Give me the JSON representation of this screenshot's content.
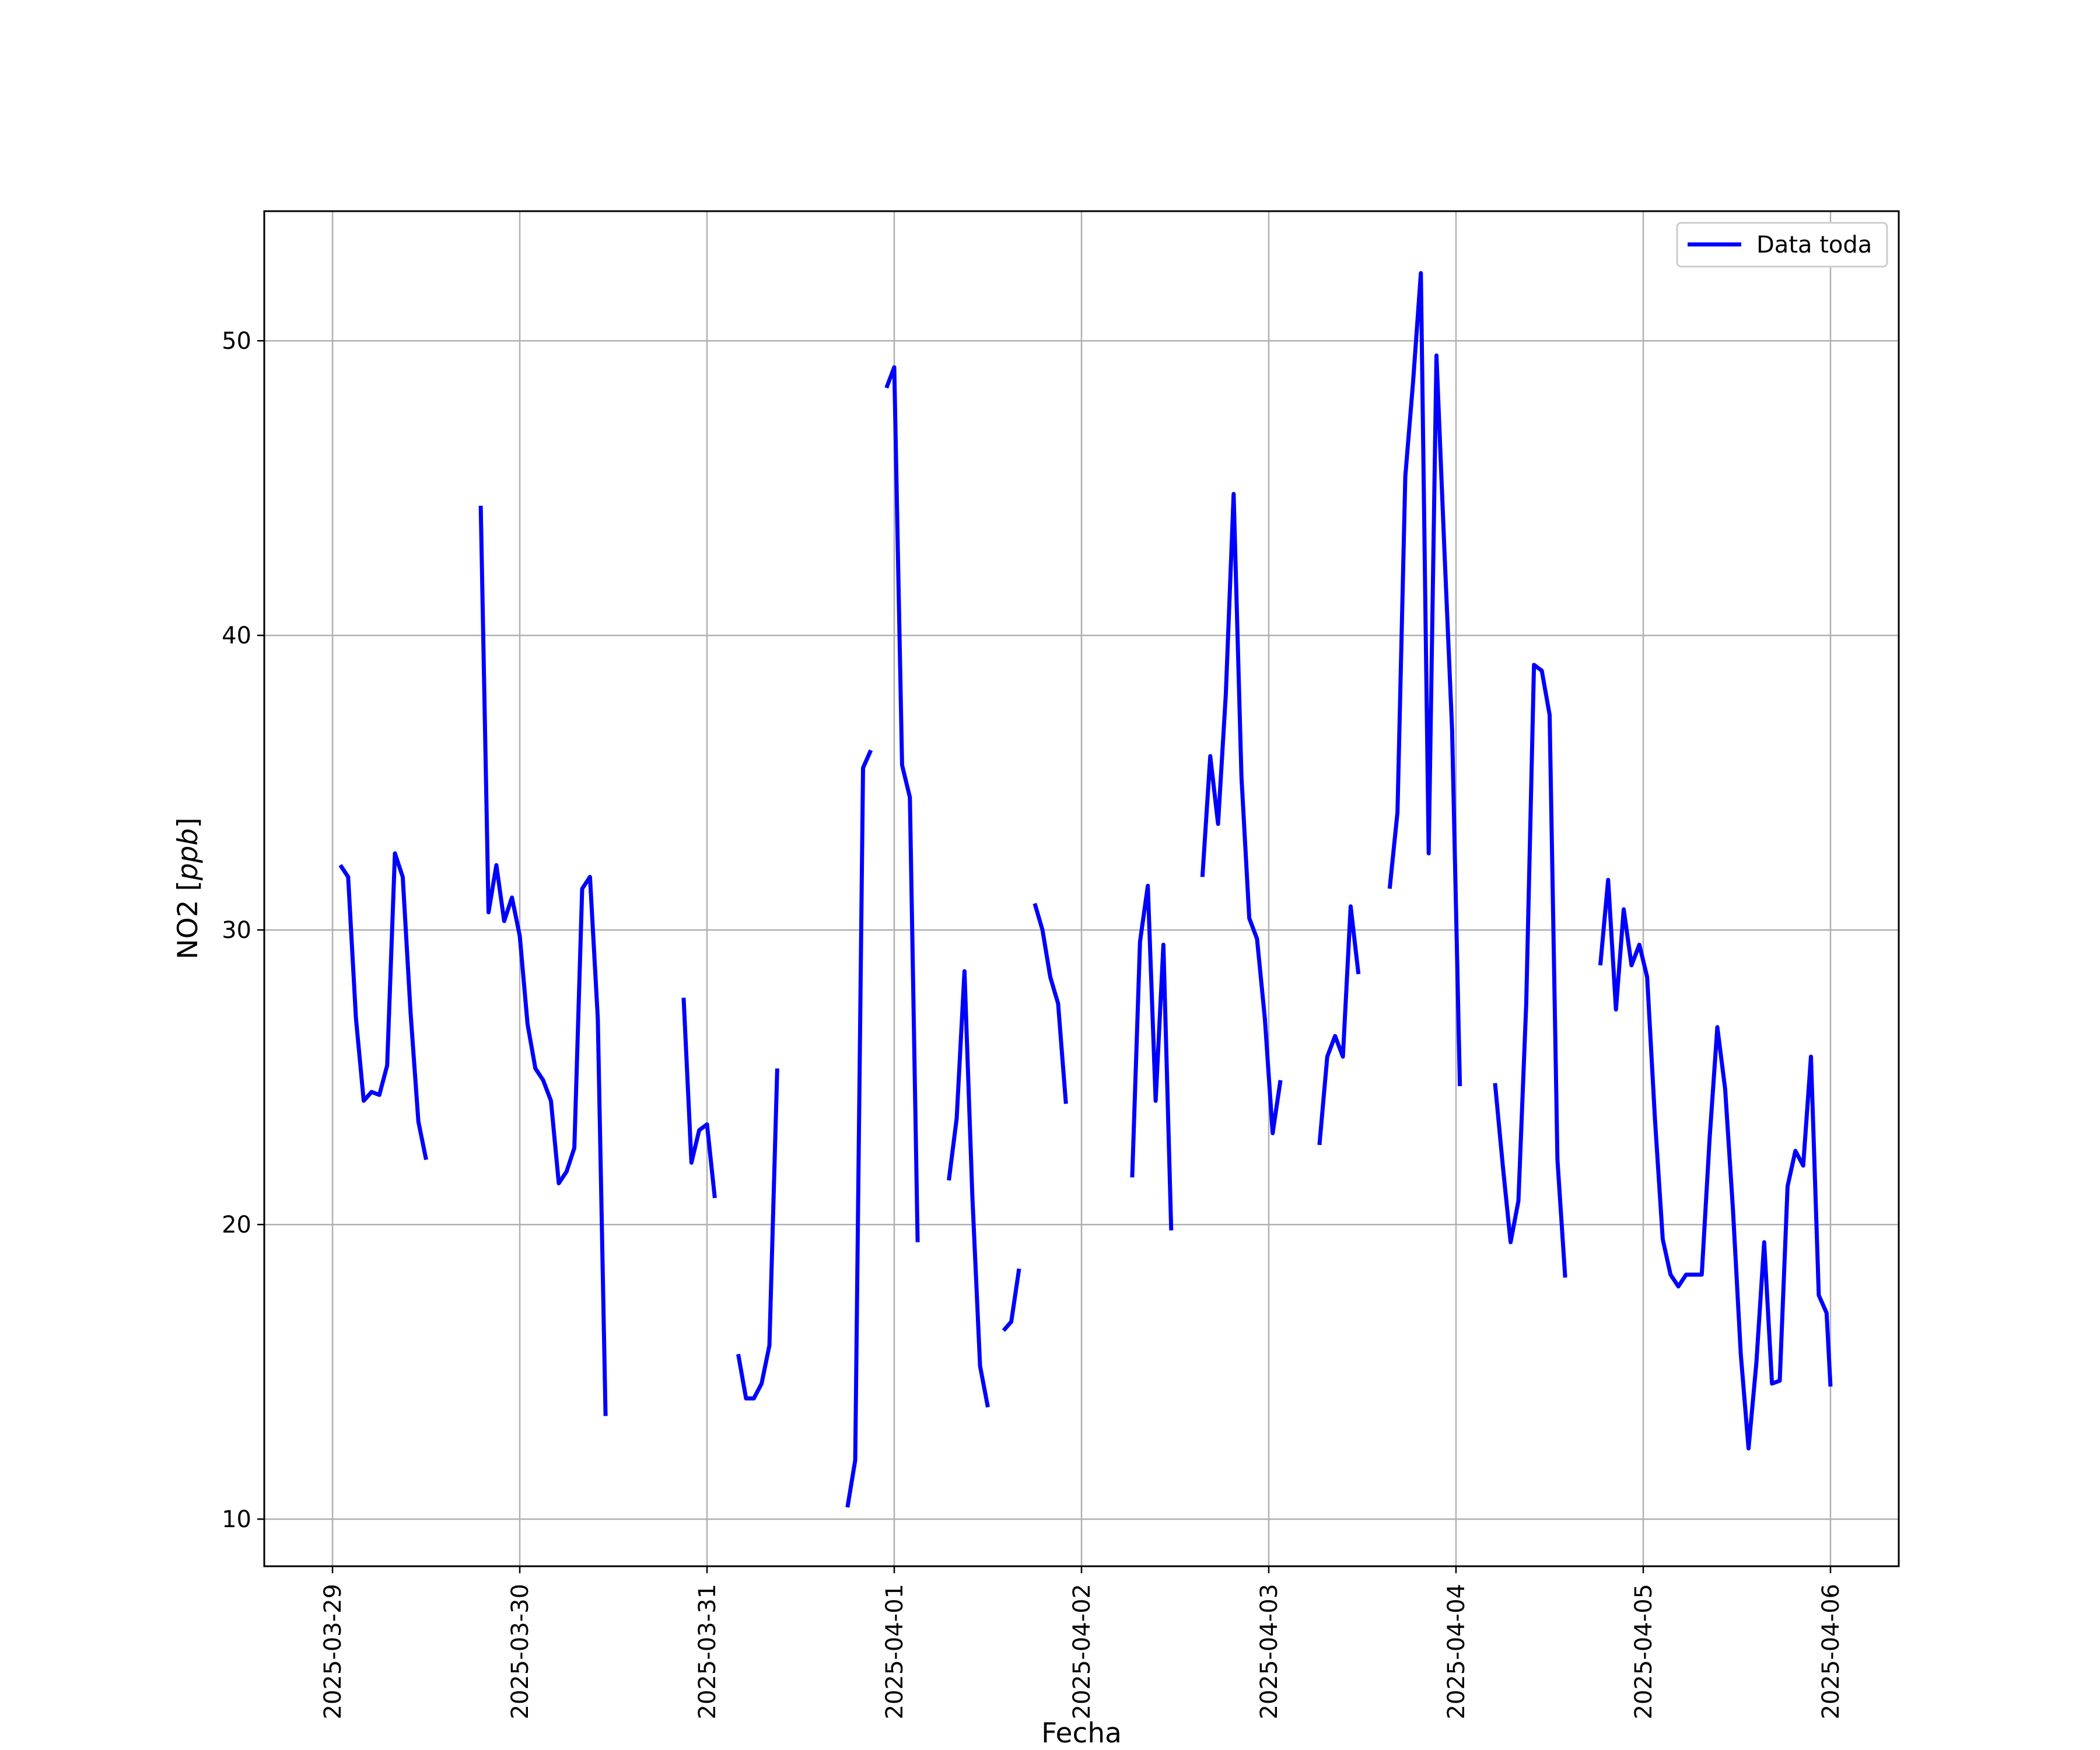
{
  "chart_data": {
    "type": "line",
    "title": "",
    "xlabel": "Fecha",
    "ylabel_main": "NO2",
    "ylabel_unit": "ppb",
    "xlim": [
      "2025-03-28T15:15",
      "2025-04-06T08:45"
    ],
    "ylim": [
      8.4,
      54.4
    ],
    "grid": true,
    "legend": {
      "position": "top-right",
      "entries": [
        "Data toda"
      ]
    },
    "x_ticks": [
      "2025-03-29",
      "2025-03-30",
      "2025-03-31",
      "2025-04-01",
      "2025-04-02",
      "2025-04-03",
      "2025-04-04",
      "2025-04-05",
      "2025-04-06"
    ],
    "y_ticks": [
      10,
      20,
      30,
      40,
      50
    ],
    "series": [
      {
        "name": "Data toda",
        "color": "#0000ff",
        "segments": [
          [
            [
              "2025-03-29T01:00",
              32.2
            ],
            [
              "2025-03-29T02:00",
              31.8
            ],
            [
              "2025-03-29T03:00",
              27.0
            ],
            [
              "2025-03-29T04:00",
              24.2
            ],
            [
              "2025-03-29T05:00",
              24.5
            ],
            [
              "2025-03-29T06:00",
              24.4
            ],
            [
              "2025-03-29T07:00",
              25.4
            ],
            [
              "2025-03-29T08:00",
              32.6
            ],
            [
              "2025-03-29T09:00",
              31.8
            ],
            [
              "2025-03-29T10:00",
              27.2
            ],
            [
              "2025-03-29T11:00",
              23.5
            ],
            [
              "2025-03-29T12:00",
              22.2
            ]
          ],
          [
            [
              "2025-03-29T19:00",
              44.4
            ],
            [
              "2025-03-29T20:00",
              30.6
            ],
            [
              "2025-03-29T21:00",
              32.2
            ],
            [
              "2025-03-29T22:00",
              30.3
            ],
            [
              "2025-03-29T23:00",
              31.1
            ],
            [
              "2025-03-30T00:00",
              29.8
            ],
            [
              "2025-03-30T01:00",
              26.8
            ],
            [
              "2025-03-30T02:00",
              25.3
            ],
            [
              "2025-03-30T03:00",
              24.9
            ],
            [
              "2025-03-30T04:00",
              24.2
            ],
            [
              "2025-03-30T05:00",
              21.4
            ],
            [
              "2025-03-30T06:00",
              21.8
            ],
            [
              "2025-03-30T07:00",
              22.6
            ],
            [
              "2025-03-30T08:00",
              31.4
            ],
            [
              "2025-03-30T09:00",
              31.8
            ],
            [
              "2025-03-30T10:00",
              27.0
            ],
            [
              "2025-03-30T11:00",
              13.5
            ]
          ],
          [
            [
              "2025-03-30T21:00",
              27.7
            ],
            [
              "2025-03-30T22:00",
              22.1
            ],
            [
              "2025-03-30T23:00",
              23.2
            ],
            [
              "2025-03-31T00:00",
              23.4
            ],
            [
              "2025-03-31T01:00",
              20.9
            ]
          ],
          [
            [
              "2025-03-31T04:00",
              15.6
            ],
            [
              "2025-03-31T05:00",
              14.1
            ],
            [
              "2025-03-31T06:00",
              14.1
            ],
            [
              "2025-03-31T07:00",
              14.6
            ],
            [
              "2025-03-31T08:00",
              15.9
            ],
            [
              "2025-03-31T09:00",
              25.3
            ]
          ],
          [
            [
              "2025-03-31T18:00",
              10.4
            ],
            [
              "2025-03-31T19:00",
              12.0
            ],
            [
              "2025-03-31T20:00",
              35.5
            ],
            [
              "2025-03-31T21:00",
              36.1
            ]
          ],
          [
            [
              "2025-03-31T23:00",
              48.4
            ],
            [
              "2025-04-01T00:00",
              49.1
            ],
            [
              "2025-04-01T01:00",
              35.6
            ],
            [
              "2025-04-01T02:00",
              34.5
            ],
            [
              "2025-04-01T03:00",
              19.4
            ]
          ],
          [
            [
              "2025-04-01T07:00",
              21.5
            ],
            [
              "2025-04-01T08:00",
              23.6
            ],
            [
              "2025-04-01T09:00",
              28.6
            ],
            [
              "2025-04-01T10:00",
              21.0
            ],
            [
              "2025-04-01T11:00",
              15.2
            ],
            [
              "2025-04-01T12:00",
              13.8
            ]
          ],
          [
            [
              "2025-04-01T14:00",
              16.4
            ],
            [
              "2025-04-01T15:00",
              16.7
            ],
            [
              "2025-04-01T16:00",
              18.5
            ]
          ],
          [
            [
              "2025-04-01T18:00",
              30.9
            ],
            [
              "2025-04-01T19:00",
              30.0
            ],
            [
              "2025-04-01T20:00",
              28.4
            ],
            [
              "2025-04-01T21:00",
              27.5
            ],
            [
              "2025-04-01T22:00",
              24.1
            ]
          ],
          [
            [
              "2025-04-02T06:30",
              21.6
            ],
            [
              "2025-04-02T07:30",
              29.6
            ],
            [
              "2025-04-02T08:30",
              31.5
            ],
            [
              "2025-04-02T09:30",
              24.2
            ],
            [
              "2025-04-02T10:30",
              29.5
            ],
            [
              "2025-04-02T11:30",
              19.8
            ]
          ],
          [
            [
              "2025-04-02T15:30",
              31.8
            ],
            [
              "2025-04-02T16:30",
              35.9
            ],
            [
              "2025-04-02T17:30",
              33.6
            ],
            [
              "2025-04-02T18:30",
              38.0
            ],
            [
              "2025-04-02T19:30",
              44.8
            ],
            [
              "2025-04-02T20:30",
              35.2
            ],
            [
              "2025-04-02T21:30",
              30.4
            ],
            [
              "2025-04-02T22:30",
              29.7
            ],
            [
              "2025-04-02T23:30",
              27.0
            ],
            [
              "2025-04-03T00:30",
              23.1
            ],
            [
              "2025-04-03T01:30",
              24.9
            ]
          ],
          [
            [
              "2025-04-03T06:30",
              22.7
            ],
            [
              "2025-04-03T07:30",
              25.7
            ],
            [
              "2025-04-03T08:30",
              26.4
            ],
            [
              "2025-04-03T09:30",
              25.7
            ],
            [
              "2025-04-03T10:30",
              30.8
            ],
            [
              "2025-04-03T11:30",
              28.5
            ]
          ],
          [
            [
              "2025-04-03T15:30",
              31.4
            ],
            [
              "2025-04-03T16:30",
              34.0
            ],
            [
              "2025-04-03T17:30",
              45.4
            ],
            [
              "2025-04-03T18:30",
              48.6
            ],
            [
              "2025-04-03T19:30",
              52.3
            ],
            [
              "2025-04-03T20:30",
              32.6
            ],
            [
              "2025-04-03T21:30",
              49.5
            ],
            [
              "2025-04-03T22:30",
              43.0
            ],
            [
              "2025-04-03T23:30",
              36.8
            ],
            [
              "2025-04-04T00:30",
              24.7
            ]
          ],
          [
            [
              "2025-04-04T05:00",
              24.8
            ],
            [
              "2025-04-04T06:00",
              22.0
            ],
            [
              "2025-04-04T07:00",
              19.4
            ],
            [
              "2025-04-04T08:00",
              20.8
            ],
            [
              "2025-04-04T09:00",
              27.5
            ],
            [
              "2025-04-04T10:00",
              39.0
            ],
            [
              "2025-04-04T11:00",
              38.8
            ],
            [
              "2025-04-04T12:00",
              37.3
            ],
            [
              "2025-04-04T13:00",
              22.2
            ],
            [
              "2025-04-04T14:00",
              18.2
            ]
          ],
          [
            [
              "2025-04-04T18:30",
              28.8
            ],
            [
              "2025-04-04T19:30",
              31.7
            ],
            [
              "2025-04-04T20:30",
              27.3
            ],
            [
              "2025-04-04T21:30",
              30.7
            ],
            [
              "2025-04-04T22:30",
              28.8
            ],
            [
              "2025-04-04T23:30",
              29.5
            ],
            [
              "2025-04-05T00:30",
              28.4
            ],
            [
              "2025-04-05T01:30",
              23.6
            ],
            [
              "2025-04-05T02:30",
              19.5
            ],
            [
              "2025-04-05T03:30",
              18.3
            ],
            [
              "2025-04-05T04:30",
              17.9
            ],
            [
              "2025-04-05T05:30",
              18.3
            ],
            [
              "2025-04-05T06:30",
              18.3
            ],
            [
              "2025-04-05T07:30",
              18.3
            ],
            [
              "2025-04-05T08:30",
              22.9
            ],
            [
              "2025-04-05T09:30",
              26.7
            ],
            [
              "2025-04-05T10:30",
              24.6
            ],
            [
              "2025-04-05T11:30",
              20.5
            ],
            [
              "2025-04-05T12:30",
              15.6
            ],
            [
              "2025-04-05T13:30",
              12.4
            ],
            [
              "2025-04-05T14:30",
              15.3
            ],
            [
              "2025-04-05T15:30",
              19.4
            ],
            [
              "2025-04-05T16:30",
              14.6
            ],
            [
              "2025-04-05T17:30",
              14.7
            ],
            [
              "2025-04-05T18:30",
              21.3
            ],
            [
              "2025-04-05T19:30",
              22.5
            ],
            [
              "2025-04-05T20:30",
              22.0
            ],
            [
              "2025-04-05T21:30",
              25.7
            ],
            [
              "2025-04-05T22:30",
              17.6
            ],
            [
              "2025-04-05T23:30",
              17.0
            ],
            [
              "2025-04-06T00:00",
              14.5
            ]
          ]
        ]
      }
    ]
  }
}
